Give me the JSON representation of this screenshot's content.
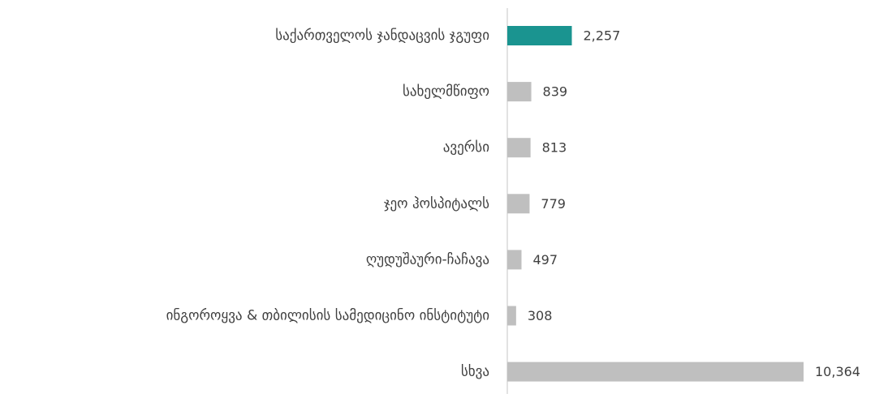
{
  "chart_data": {
    "type": "barh",
    "categories": [
      "საქართველოს ჯანდაცვის ჯგუფი",
      "სახელმწიფო",
      "ავერსი",
      "ჯეო ჰოსპიტალს",
      "ღუდუშაური-ჩაჩავა",
      "ინგოროყვა & თბილისის სამედიცინო ინსტიტუტი",
      "სხვა"
    ],
    "values": [
      2257,
      839,
      813,
      779,
      497,
      308,
      10364
    ],
    "value_labels": [
      "2,257",
      "839",
      "813",
      "779",
      "497",
      "308",
      "10,364"
    ],
    "colors": [
      "#1a9490",
      "#bfbfbf",
      "#bfbfbf",
      "#bfbfbf",
      "#bfbfbf",
      "#bfbfbf",
      "#bfbfbf"
    ]
  }
}
